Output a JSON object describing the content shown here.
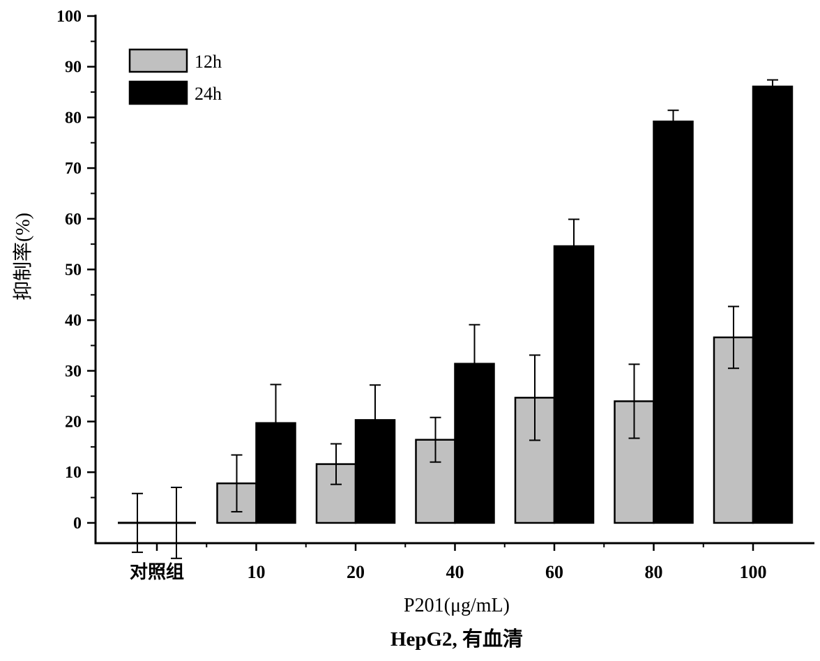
{
  "chart_data": {
    "type": "bar",
    "categories": [
      "对照组",
      "10",
      "20",
      "40",
      "60",
      "80",
      "100"
    ],
    "series": [
      {
        "name": "12h",
        "values": [
          0,
          7.8,
          11.6,
          16.4,
          24.7,
          24.0,
          36.6
        ],
        "errors": [
          5.8,
          5.6,
          4.0,
          4.4,
          8.4,
          7.3,
          6.1
        ],
        "color": "#c0c0c0"
      },
      {
        "name": "24h",
        "values": [
          0,
          19.7,
          20.3,
          31.4,
          54.6,
          79.2,
          86.1
        ],
        "errors": [
          7.0,
          7.6,
          6.9,
          7.7,
          5.3,
          2.2,
          1.3
        ],
        "color": "#000000"
      }
    ],
    "ylim": [
      -4,
      100
    ],
    "yticks": [
      "0",
      "10",
      "20",
      "30",
      "40",
      "50",
      "60",
      "70",
      "80",
      "90",
      "100"
    ],
    "ylabel": "抑制率(%)",
    "xlabel": "P201(μg/mL)",
    "caption": "HepG2, 有血清",
    "legend_position": "top-left",
    "grid": false
  }
}
